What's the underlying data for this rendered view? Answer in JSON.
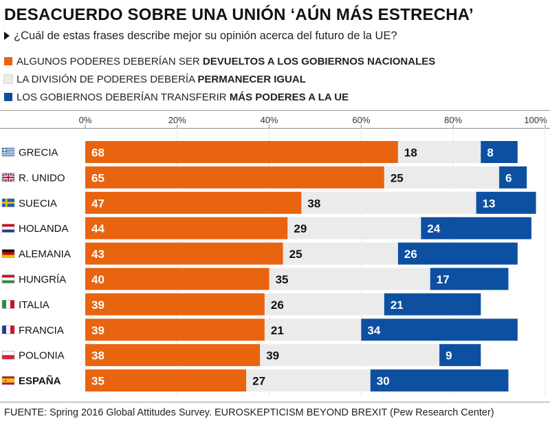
{
  "title": "DESACUERDO SOBRE UNA UNIÓN ‘AÚN MÁS ESTRECHA’",
  "subtitle": "¿Cuál de estas frases describe mejor su opinión acerca del futuro de la UE?",
  "legend": [
    {
      "prefix": "ALGUNOS PODERES DEBERÍAN SER ",
      "bold": "DEVUELTOS A LOS GOBIERNOS NACIONALES",
      "color": "#e8640f"
    },
    {
      "prefix": "LA DIVISIÓN DE PODERES DEBERÍA ",
      "bold": "PERMANECER IGUAL",
      "color": "#ebebeb"
    },
    {
      "prefix": "LOS GOBIERNOS DEBERÍAN TRANSFERIR ",
      "bold": "MÁS PODERES A LA UE",
      "color": "#0d4fa1"
    }
  ],
  "source": "FUENTE: Spring 2016 Global Attitudes Survey. EUROSKEPTICISM BEYOND BREXIT (Pew Research Center)",
  "chart_data": {
    "type": "bar",
    "orientation": "horizontal",
    "stacked": true,
    "xlim": [
      0,
      100
    ],
    "x_ticks": [
      "0%",
      "20%",
      "40%",
      "60%",
      "80%",
      "100%"
    ],
    "categories": [
      "GRECIA",
      "R. UNIDO",
      "SUECIA",
      "HOLANDA",
      "ALEMANIA",
      "HUNGRÍA",
      "ITALIA",
      "FRANCIA",
      "POLONIA",
      "ESPAÑA"
    ],
    "highlight_category": "ESPAÑA",
    "category_icons": [
      "greece-flag-icon",
      "uk-flag-icon",
      "sweden-flag-icon",
      "netherlands-flag-icon",
      "germany-flag-icon",
      "hungary-flag-icon",
      "italy-flag-icon",
      "france-flag-icon",
      "poland-flag-icon",
      "spain-flag-icon"
    ],
    "series": [
      {
        "values": [
          68,
          65,
          47,
          44,
          43,
          40,
          39,
          39,
          38,
          35
        ],
        "color": "#e8640f",
        "label_color": "#ffffff"
      },
      {
        "values": [
          18,
          25,
          38,
          29,
          25,
          35,
          26,
          21,
          39,
          27
        ],
        "color": "#ebebeb",
        "label_color": "#111111"
      },
      {
        "values": [
          8,
          6,
          13,
          24,
          26,
          17,
          21,
          34,
          9,
          30
        ],
        "color": "#0d4fa1",
        "label_color": "#ffffff"
      }
    ],
    "grid": true
  }
}
